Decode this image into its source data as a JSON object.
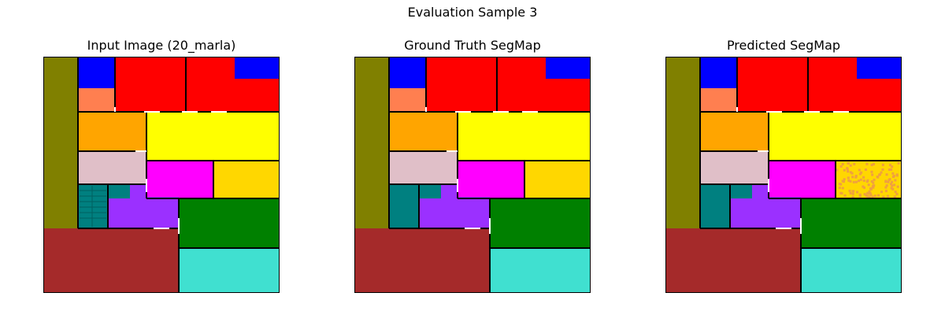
{
  "figure": {
    "title": "Evaluation Sample 3",
    "panels": [
      {
        "title": "Input Image (20_marla)",
        "content": "floorplan-input"
      },
      {
        "title": "Ground Truth SegMap",
        "content": "ground-truth-segmap"
      },
      {
        "title": "Predicted SegMap",
        "content": "predicted-segmap"
      }
    ]
  },
  "colors": {
    "olive": "#808000",
    "blue": "#0000ff",
    "red": "#ff0000",
    "coral": "#ff7f50",
    "orange": "#ffa500",
    "yellow": "#ffff00",
    "pink": "#e0bfc8",
    "magenta": "#ff00ff",
    "gold": "#ffd700",
    "teal": "#008080",
    "purple": "#9b30ff",
    "green": "#008000",
    "brown": "#a52a2a",
    "turquoise": "#40e0d0",
    "wall": "#000000"
  }
}
